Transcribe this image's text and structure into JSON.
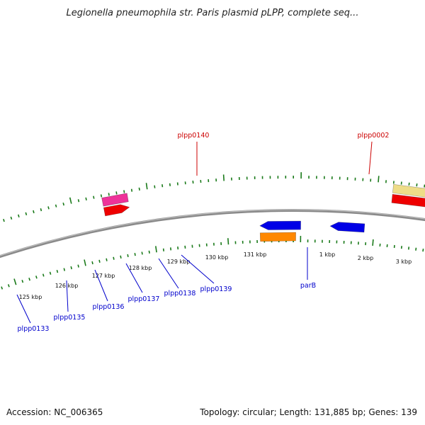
{
  "title": "Legionella pneumophila str. Paris plasmid pLPP, complete seq...",
  "footer": {
    "accession": "Accession: NC_006365",
    "summary": "Topology: circular; Length: 131,885 bp; Genes: 139"
  },
  "colors": {
    "backbone": "#8a8a8a",
    "tick": "#1a7a1a",
    "label_forward": "#cc0000",
    "label_reverse": "#0000cc",
    "blue": "#0000e6",
    "red": "#ee0000",
    "pink": "#ee3399",
    "orange": "#ff8800",
    "khaki": "#eedd88",
    "salmon": "#ee7777",
    "grey": "#bbbbbb",
    "cyan": "#00ccee"
  },
  "ticks": {
    "labels": [
      "125 kbp",
      "126 kbp",
      "127 kbp",
      "128 kbp",
      "129 kbp",
      "130 kbp",
      "131 kbp",
      "1 kbp",
      "2 kbp",
      "3 kbp"
    ]
  },
  "labels": {
    "forward": [
      "plpp0140",
      "plpp0002"
    ],
    "reverse": [
      "plpp0133",
      "plpp0135",
      "plpp0136",
      "plpp0137",
      "plpp0138",
      "plpp0139",
      "parB"
    ]
  },
  "features": [
    {
      "color": "red",
      "track": "f1",
      "dir": "f"
    },
    {
      "color": "pink",
      "track": "f2",
      "dir": "none"
    },
    {
      "color": "red",
      "track": "f1",
      "dir": "f"
    },
    {
      "color": "khaki",
      "track": "f2",
      "dir": "none"
    },
    {
      "color": "orange",
      "track": "f2",
      "dir": "none"
    },
    {
      "color": "red",
      "track": "f1",
      "dir": "f"
    },
    {
      "color": "red",
      "track": "f1",
      "dir": "f"
    },
    {
      "color": "blue",
      "track": "r1",
      "dir": "r"
    },
    {
      "color": "blue",
      "track": "r1",
      "dir": "r"
    },
    {
      "color": "blue",
      "track": "r1",
      "dir": "r"
    },
    {
      "color": "blue",
      "track": "r1",
      "dir": "r"
    },
    {
      "color": "blue",
      "track": "r1",
      "dir": "r"
    },
    {
      "color": "blue",
      "track": "r1",
      "dir": "r"
    },
    {
      "color": "blue",
      "track": "r1",
      "dir": "r"
    },
    {
      "color": "grey",
      "track": "r2",
      "dir": "none"
    },
    {
      "color": "salmon",
      "track": "r2",
      "dir": "none"
    },
    {
      "color": "cyan",
      "track": "r2",
      "dir": "none"
    },
    {
      "color": "blue",
      "track": "r1",
      "dir": "r"
    },
    {
      "color": "orange",
      "track": "r2",
      "dir": "none"
    }
  ]
}
